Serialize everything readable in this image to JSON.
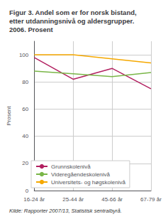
{
  "chart_data": {
    "type": "line",
    "title": "Figur 3. Andel som er for norsk bistand,\netter utdanningsnivå og aldersgrupper.\n2006. Prosent",
    "ylabel": "Prosent",
    "source": "Kilde: Rapporter 2007/13, Statistisk sentralbyrå.",
    "categories": [
      "16-24 år",
      "25-44 år",
      "45-66 år",
      "67-79 år"
    ],
    "series": [
      {
        "name": "Grunnskolenivå",
        "color": "#b22060",
        "values": [
          98,
          82,
          90,
          75
        ]
      },
      {
        "name": "Videregåendeskolenivå",
        "color": "#7ab648",
        "values": [
          88,
          86,
          84,
          87
        ]
      },
      {
        "name": "Universitets- og høgskolenivå",
        "color": "#f5a800",
        "values": [
          100,
          100,
          97,
          94
        ]
      }
    ],
    "ylim": [
      0,
      110
    ],
    "yticks": [
      0,
      20,
      40,
      60,
      80,
      100
    ],
    "grid": true,
    "legend": "lower left"
  }
}
